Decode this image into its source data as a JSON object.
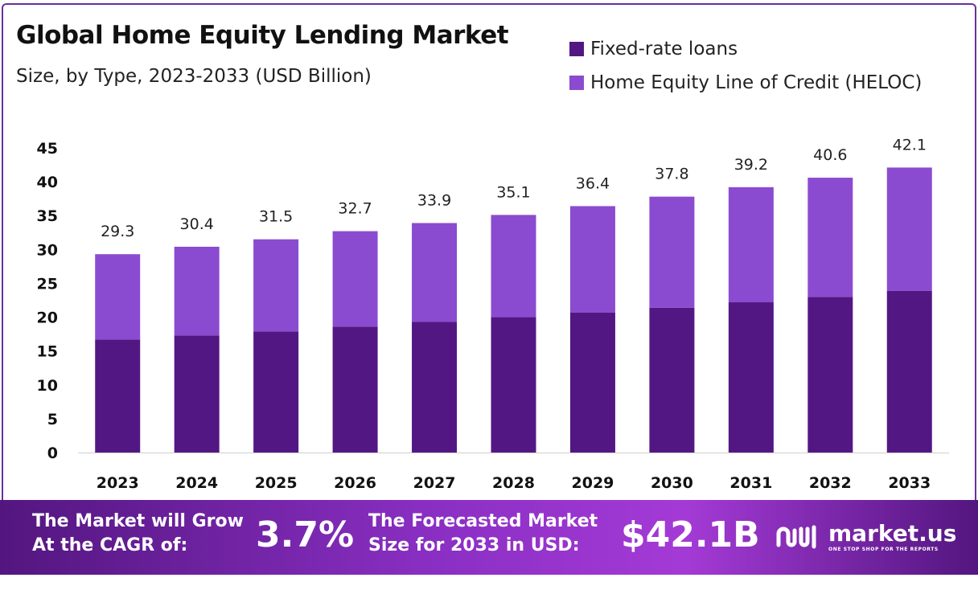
{
  "chart_data": {
    "type": "bar",
    "stacked": true,
    "title": "Global Home Equity Lending Market",
    "subtitle": "Size, by Type, 2023-2033 (USD Billion)",
    "xlabel": "",
    "ylabel": "",
    "ylim": [
      0,
      45
    ],
    "yticks": [
      0,
      5,
      10,
      15,
      20,
      25,
      30,
      35,
      40,
      45
    ],
    "categories": [
      "2023",
      "2024",
      "2025",
      "2026",
      "2027",
      "2028",
      "2029",
      "2030",
      "2031",
      "2032",
      "2033"
    ],
    "series": [
      {
        "name": "Fixed-rate loans",
        "color": "#531783",
        "values": [
          16.7,
          17.3,
          17.9,
          18.6,
          19.3,
          20.0,
          20.7,
          21.4,
          22.2,
          23.0,
          23.9
        ]
      },
      {
        "name": "Home Equity Line of Credit (HELOC)",
        "color": "#8b4bd0",
        "values": [
          12.6,
          13.1,
          13.6,
          14.1,
          14.6,
          15.1,
          15.7,
          16.4,
          17.0,
          17.6,
          18.2
        ]
      }
    ],
    "totals": [
      "29.3",
      "30.4",
      "31.5",
      "32.7",
      "33.9",
      "35.1",
      "36.4",
      "37.8",
      "39.2",
      "40.6",
      "42.1"
    ],
    "legend_position": "top-right"
  },
  "footer": {
    "cagr_label_line1": "The Market will Grow",
    "cagr_label_line2": "At the CAGR of:",
    "cagr_value": "3.7%",
    "forecast_label_line1": "The Forecasted Market",
    "forecast_label_line2": "Size for 2033 in USD:",
    "forecast_value": "$42.1B",
    "brand_name": "market.us",
    "brand_tagline": "ONE STOP SHOP FOR THE REPORTS"
  }
}
